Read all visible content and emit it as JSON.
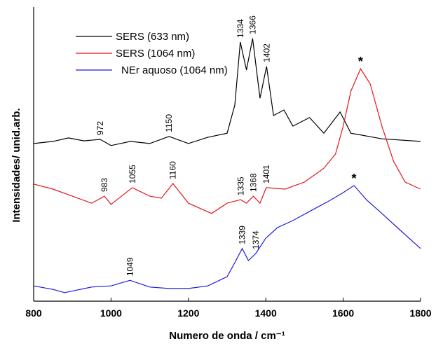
{
  "chart_data": {
    "type": "line",
    "x_label": "Numero de onda / cm⁻¹",
    "y_label": "Intensidades/ unid.arb.",
    "xlim": [
      800,
      1800
    ],
    "xticks": [
      800,
      1000,
      1200,
      1400,
      1600,
      1800
    ],
    "ylim": [
      0,
      100
    ],
    "legend": "upper left",
    "series": [
      {
        "name": "SERS (633 nm)",
        "color": "#000000",
        "x": [
          800,
          850,
          890,
          930,
          972,
          1000,
          1050,
          1100,
          1150,
          1200,
          1250,
          1300,
          1320,
          1334,
          1350,
          1366,
          1385,
          1402,
          1420,
          1447,
          1470,
          1513,
          1550,
          1592,
          1620,
          1700,
          1800
        ],
        "values": [
          53.6,
          54.3,
          55.5,
          54.5,
          55,
          52.9,
          54.3,
          53.6,
          56,
          53.6,
          55.7,
          57.1,
          66.7,
          88.1,
          78.6,
          89.3,
          69,
          79.8,
          63.1,
          65,
          59.5,
          62.4,
          57.1,
          64.3,
          57.1,
          55.2,
          54.3
        ],
        "peak_labels": [
          972,
          1150,
          1334,
          1366,
          1402
        ]
      },
      {
        "name": "SERS (1064 nm)",
        "color": "#e8141c",
        "x": [
          800,
          850,
          900,
          950,
          983,
          1000,
          1055,
          1100,
          1130,
          1160,
          1200,
          1260,
          1300,
          1335,
          1350,
          1368,
          1385,
          1401,
          1450,
          1500,
          1550,
          1580,
          1600,
          1620,
          1645,
          1670,
          1700,
          1730,
          1760,
          1800
        ],
        "values": [
          39.8,
          38.1,
          35.7,
          33.3,
          35.7,
          32.9,
          38.6,
          35.7,
          35,
          40,
          33.3,
          29.8,
          33.3,
          34.5,
          33.3,
          35.7,
          33.3,
          38.6,
          38.1,
          40.5,
          45.2,
          50,
          59.5,
          71.4,
          79,
          73.8,
          59.5,
          47.6,
          40.5,
          38.1
        ],
        "peak_labels": [
          983,
          1055,
          1160,
          1335,
          1368,
          1401
        ],
        "peak_marker": "*"
      },
      {
        "name": "NEr aquoso (1064 nm)",
        "color": "#1a1ae0",
        "x": [
          800,
          850,
          880,
          950,
          1000,
          1049,
          1100,
          1150,
          1200,
          1250,
          1300,
          1320,
          1339,
          1355,
          1374,
          1400,
          1430,
          1470,
          1520,
          1560,
          1600,
          1628,
          1660,
          1700,
          1750,
          1800
        ],
        "values": [
          5.2,
          4,
          2.9,
          4.8,
          5.2,
          7.1,
          4.8,
          4.3,
          4.3,
          5.2,
          8.3,
          13.1,
          17.9,
          13.8,
          16.2,
          21.4,
          25,
          27.4,
          31,
          33.8,
          36.9,
          39.3,
          34.5,
          29.8,
          23.8,
          17.9
        ],
        "peak_labels": [
          1049,
          1339,
          1374
        ],
        "peak_marker": "*"
      }
    ]
  }
}
